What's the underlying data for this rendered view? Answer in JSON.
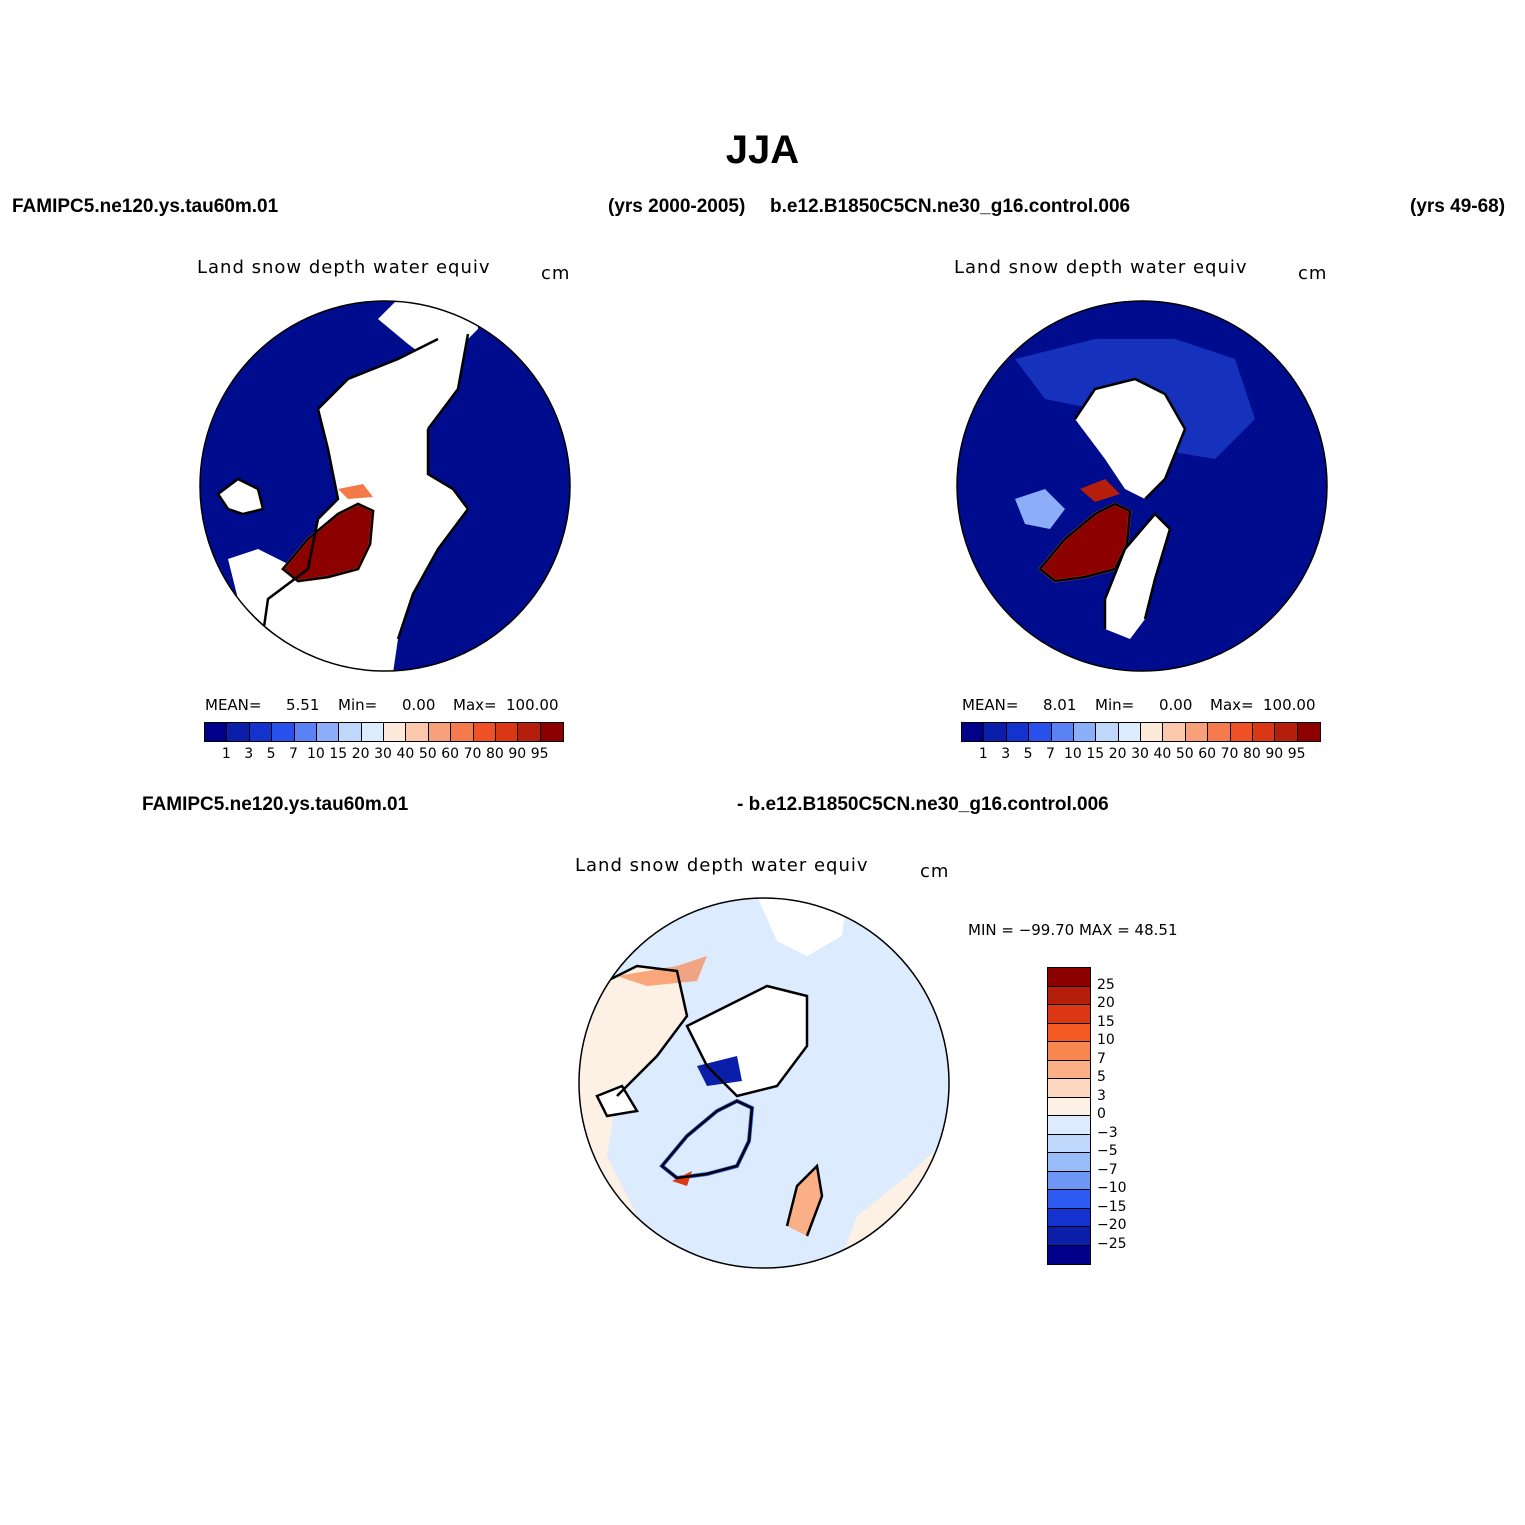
{
  "title": "JJA",
  "top_left": {
    "case": "FAMIPC5.ne120.ys.tau60m.01",
    "years": "(yrs 2000-2005)",
    "variable": "Land snow depth water equiv",
    "units": "cm",
    "mean_label": "MEAN=",
    "mean": "5.51",
    "min_label": "Min=",
    "min": "0.00",
    "max_label": "Max=",
    "max": "100.00"
  },
  "top_right": {
    "case": "b.e12.B1850C5CN.ne30_g16.control.006",
    "years": "(yrs 49-68)",
    "variable": "Land snow depth water equiv",
    "units": "cm",
    "mean_label": "MEAN=",
    "mean": "8.01",
    "min_label": "Min=",
    "min": "0.00",
    "max_label": "Max=",
    "max": "100.00"
  },
  "bottom": {
    "case_left": "FAMIPC5.ne120.ys.tau60m.01",
    "case_right": "- b.e12.B1850C5CN.ne30_g16.control.006",
    "variable": "Land snow depth water equiv",
    "units": "cm",
    "minmax": "MIN = −99.70  MAX =   48.51"
  },
  "field_colorbar": {
    "colors": [
      "#00008b",
      "#0a1eaa",
      "#1432cd",
      "#2850eb",
      "#5a82f5",
      "#8cadf8",
      "#bed7fb",
      "#dcebfd",
      "#fde9d9",
      "#fcc8ad",
      "#f7a07a",
      "#f57b4f",
      "#ef5026",
      "#dc3714",
      "#b41e0a",
      "#8c0000"
    ],
    "labels": [
      "1",
      "3",
      "5",
      "7",
      "10",
      "15",
      "20",
      "30",
      "40",
      "50",
      "60",
      "70",
      "80",
      "90",
      "95"
    ]
  },
  "diff_colorbar": {
    "colors": [
      "#8c0000",
      "#b41e0a",
      "#dc3714",
      "#f55a23",
      "#f7864f",
      "#fbaf87",
      "#fdd7bf",
      "#fdf0e4",
      "#dcebfd",
      "#bed7fb",
      "#99bdf8",
      "#6e96f5",
      "#2d5af0",
      "#1432cd",
      "#0a1eaa",
      "#00008b"
    ],
    "labels": [
      "25",
      "20",
      "15",
      "10",
      "7",
      "5",
      "3",
      "0",
      "−3",
      "−5",
      "−7",
      "−10",
      "−15",
      "−20",
      "−25"
    ]
  }
}
